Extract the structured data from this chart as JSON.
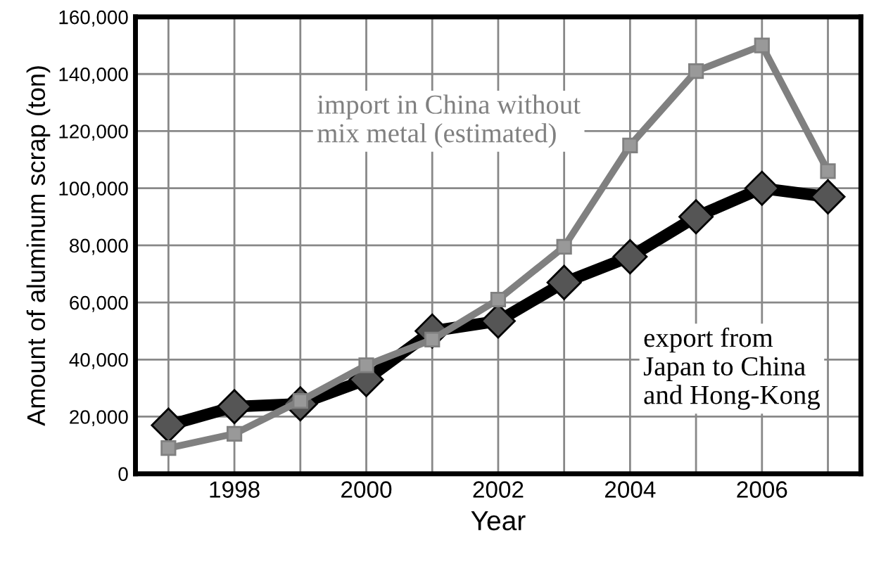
{
  "chart_data": {
    "type": "line",
    "xlabel": "Year",
    "ylabel": "Amount of aluminum scrap (ton)",
    "x": [
      1997,
      1998,
      1999,
      2000,
      2001,
      2002,
      2003,
      2004,
      2005,
      2006,
      2007
    ],
    "series": [
      {
        "name": "export from\nJapan to China\nand Hong-Kong",
        "color": "#000000",
        "marker": "diamond",
        "values": [
          17000,
          23500,
          24500,
          33000,
          50000,
          53500,
          67000,
          76000,
          90000,
          100000,
          97000
        ]
      },
      {
        "name": "import in China without\nmix metal (estimated)",
        "color": "#808080",
        "marker": "square",
        "values": [
          9000,
          14000,
          25500,
          38000,
          47000,
          61000,
          79500,
          115000,
          141000,
          150000,
          106000
        ]
      }
    ],
    "xlim": [
      1996.5,
      2007.5
    ],
    "xticks": [
      {
        "value": 1997,
        "label": null
      },
      1998,
      {
        "value": 1999,
        "label": null
      },
      2000,
      {
        "value": 2001,
        "label": null
      },
      2002,
      {
        "value": 2003,
        "label": null
      },
      2004,
      {
        "value": 2005,
        "label": null
      },
      2006,
      {
        "value": 2007,
        "label": null
      }
    ],
    "ylim": [
      0,
      160000
    ],
    "yticks": [
      {
        "value": 0,
        "label": "0"
      },
      {
        "value": 20000,
        "label": "20,000"
      },
      {
        "value": 40000,
        "label": "40,000"
      },
      {
        "value": 60000,
        "label": "60,000"
      },
      {
        "value": 80000,
        "label": "80,000"
      },
      {
        "value": 100000,
        "label": "100,000"
      },
      {
        "value": 120000,
        "label": "120,000"
      },
      {
        "value": 140000,
        "label": "140,000"
      },
      {
        "value": 160000,
        "label": "160,000"
      }
    ],
    "grid": true,
    "legend": false,
    "line_style": "solid"
  }
}
